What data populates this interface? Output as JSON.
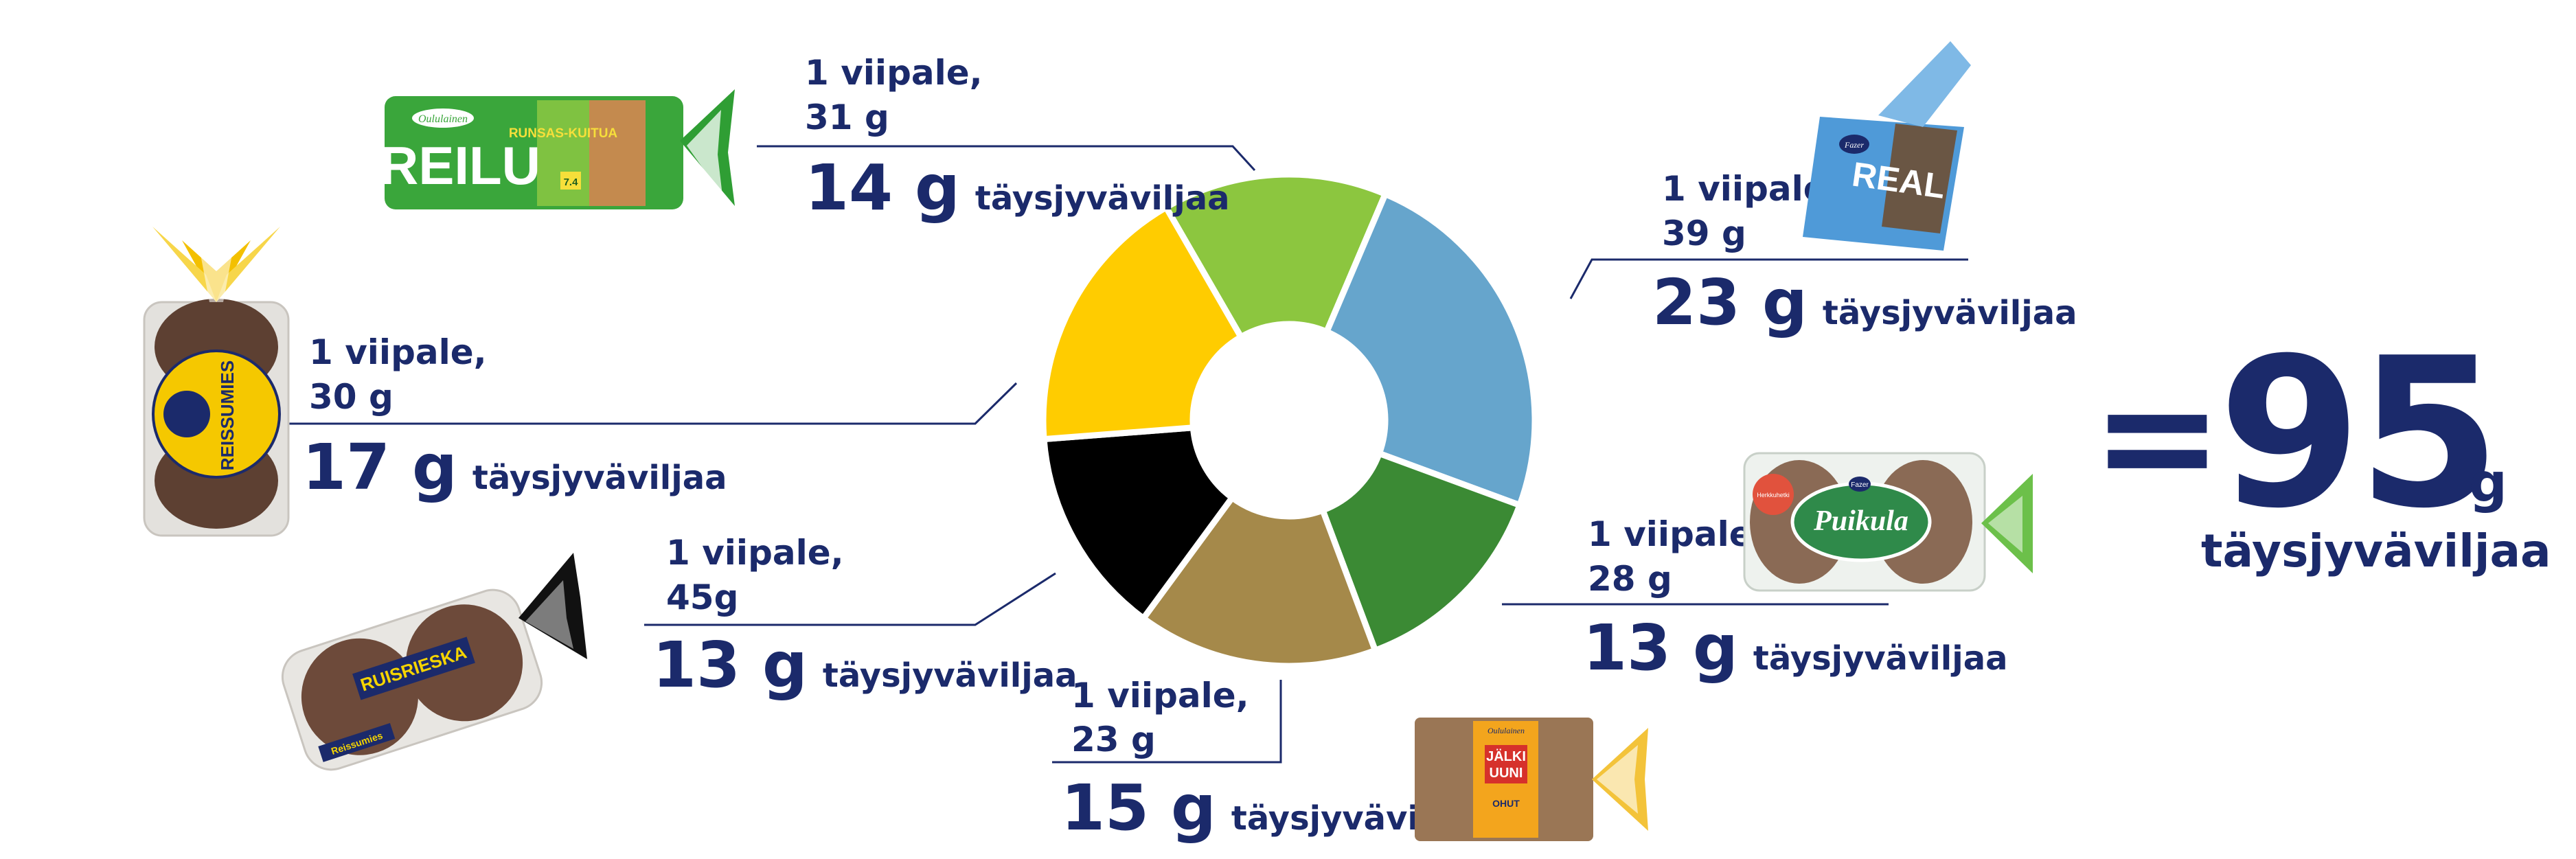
{
  "chart_data": {
    "type": "pie",
    "slices": [
      {
        "name": "Reilu",
        "slice_text": "1 viipale,",
        "weight": "31 g",
        "grams": "14 g",
        "value": 14,
        "color": "#8cc63f"
      },
      {
        "name": "Real",
        "slice_text": "1 viipale,",
        "weight": "39 g",
        "grams": "23 g",
        "value": 23,
        "color": "#66a5cc"
      },
      {
        "name": "Puikula",
        "slice_text": "1 viipale,",
        "weight": "28 g",
        "grams": "13 g",
        "value": 13,
        "color": "#3b8a34"
      },
      {
        "name": "Jälkiuuni",
        "slice_text": "1 viipale,",
        "weight": "23 g",
        "grams": "15 g",
        "value": 15,
        "color": "#a5894a"
      },
      {
        "name": "Ruisrieska",
        "slice_text": "1 viipale,",
        "weight": "45g",
        "grams": "13 g",
        "value": 13,
        "color": "#000000"
      },
      {
        "name": "Reissumies",
        "slice_text": "1 viipale,",
        "weight": "30 g",
        "grams": "17 g",
        "value": 17,
        "color": "#ffcc00"
      }
    ],
    "unit_label": "täysjyväviljaa",
    "total": {
      "prefix": "=",
      "number": "95",
      "unit": "g",
      "label": "täysjyväviljaa"
    }
  },
  "products": {
    "reilu": {
      "brand": "Oululainen",
      "name": "REILU",
      "side_text": "RUNSAS-KUITUA",
      "badge": "7.4"
    },
    "real": {
      "brand": "Fazer",
      "name": "REAL"
    },
    "puikula": {
      "brand": "Fazer",
      "name": "Puikula",
      "tag": "Herkkuhetki"
    },
    "jalkiuuni": {
      "brand": "Oululainen",
      "name1": "JÄLKI",
      "name2": "UUNI",
      "sub": "OHUT"
    },
    "ruisrieska": {
      "brand": "Reissumies",
      "name": "RUISRIESKA"
    },
    "reissumies": {
      "name": "REISSUMIES"
    }
  }
}
